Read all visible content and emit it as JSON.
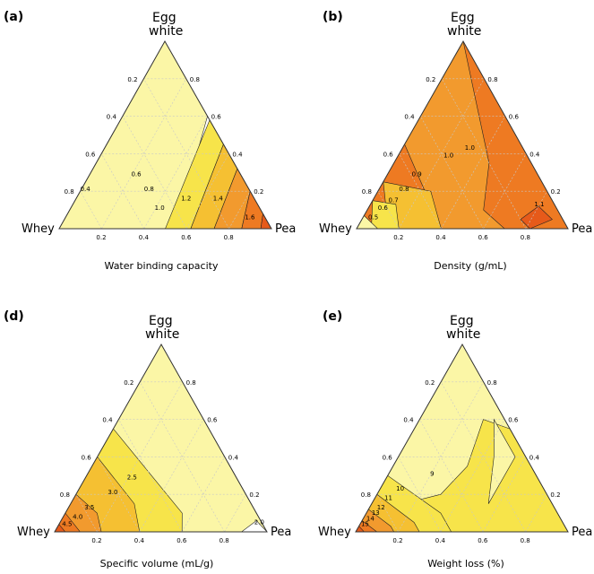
{
  "panels": [
    {
      "letter": "(a)",
      "top": "Egg",
      "top2": "white",
      "left": "Whey",
      "right": "Pea",
      "caption": "Water binding capacity",
      "ticks": [
        "0.2",
        "0.4",
        "0.6",
        "0.8"
      ],
      "contours": [
        "0.4",
        "0.6",
        "0.8",
        "1.0",
        "1.2",
        "1.4",
        "1.6"
      ]
    },
    {
      "letter": "(b)",
      "top": "Egg",
      "top2": "white",
      "left": "Whey",
      "right": "Pea",
      "caption": "Density (g/mL)",
      "ticks": [
        "0.2",
        "0.4",
        "0.6",
        "0.8"
      ],
      "contours": [
        "0.5",
        "0.6",
        "0.7",
        "0.8",
        "0.9",
        "1.0",
        "1.0",
        "1.1"
      ]
    },
    {
      "letter": "(d)",
      "top": "Egg",
      "top2": "white",
      "left": "Whey",
      "right": "Pea",
      "caption": "Specific volume (mL/g)",
      "ticks": [
        "0.2",
        "0.4",
        "0.6",
        "0.8"
      ],
      "contours": [
        "2.0",
        "2.5",
        "3.0",
        "3.5",
        "4.0",
        "4.5"
      ]
    },
    {
      "letter": "(e)",
      "top": "Egg",
      "top2": "white",
      "left": "Whey",
      "right": "Pea",
      "caption": "Weight loss (%)",
      "ticks": [
        "0.2",
        "0.4",
        "0.6",
        "0.8"
      ],
      "contours": [
        "9",
        "10",
        "11",
        "12",
        "13",
        "14",
        "15"
      ]
    }
  ],
  "chart_data": [
    {
      "type": "heatmap",
      "title": "Water binding capacity",
      "axes": [
        "Whey",
        "Pea",
        "Egg white"
      ],
      "contour_levels": [
        0.4,
        0.6,
        0.8,
        1.0,
        1.2,
        1.4,
        1.6
      ],
      "trend": "increases toward Pea"
    },
    {
      "type": "heatmap",
      "title": "Density (g/mL)",
      "axes": [
        "Whey",
        "Pea",
        "Egg white"
      ],
      "contour_levels": [
        0.5,
        0.6,
        0.7,
        0.8,
        0.9,
        1.0,
        1.1
      ],
      "trend": "lowest at Whey, maximum near Pea"
    },
    {
      "type": "heatmap",
      "title": "Specific volume (mL/g)",
      "axes": [
        "Whey",
        "Pea",
        "Egg white"
      ],
      "contour_levels": [
        2.0,
        2.5,
        3.0,
        3.5,
        4.0,
        4.5
      ],
      "trend": "highest at Whey"
    },
    {
      "type": "heatmap",
      "title": "Weight loss (%)",
      "axes": [
        "Whey",
        "Pea",
        "Egg white"
      ],
      "contour_levels": [
        9,
        10,
        11,
        12,
        13,
        14,
        15
      ],
      "trend": "highest at Whey"
    }
  ],
  "colors": {
    "pale": "#fbf6a6",
    "yellow": "#f7e44a",
    "gold": "#f5c032",
    "orange": "#f29a2e",
    "dark": "#ee7a22",
    "red": "#e65a1a",
    "grid": "#c8c8c8"
  }
}
